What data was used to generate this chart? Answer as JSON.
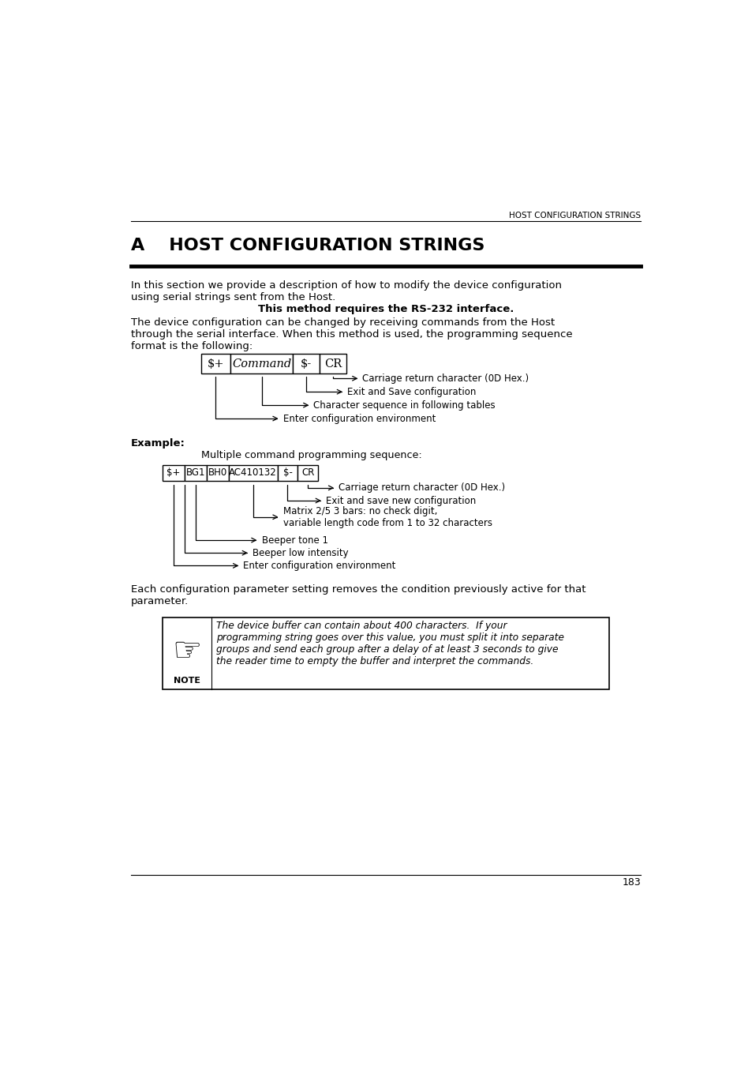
{
  "bg_color": "#ffffff",
  "page_number": "183",
  "header_text": "HOST CONFIGURATION STRINGS",
  "title": "A    HOST CONFIGURATION STRINGS",
  "intro_text": "In this section we provide a description of how to modify the device configuration\nusing serial strings sent from the Host.",
  "bold_center_text": "This method requires the RS-232 interface.",
  "body_text": "The device configuration can be changed by receiving commands from the Host\nthrough the serial interface. When this method is used, the programming sequence\nformat is the following:",
  "example_label": "Example:",
  "example_subtext": "Multiple command programming sequence:",
  "param_text": "Each configuration parameter setting removes the condition previously active for that\nparameter.",
  "note_text": "The device buffer can contain about 400 characters.  If your\nprogramming string goes over this value, you must split it into separate\ngroups and send each group after a delay of at least 3 seconds to give\nthe reader time to empty the buffer and interpret the commands."
}
